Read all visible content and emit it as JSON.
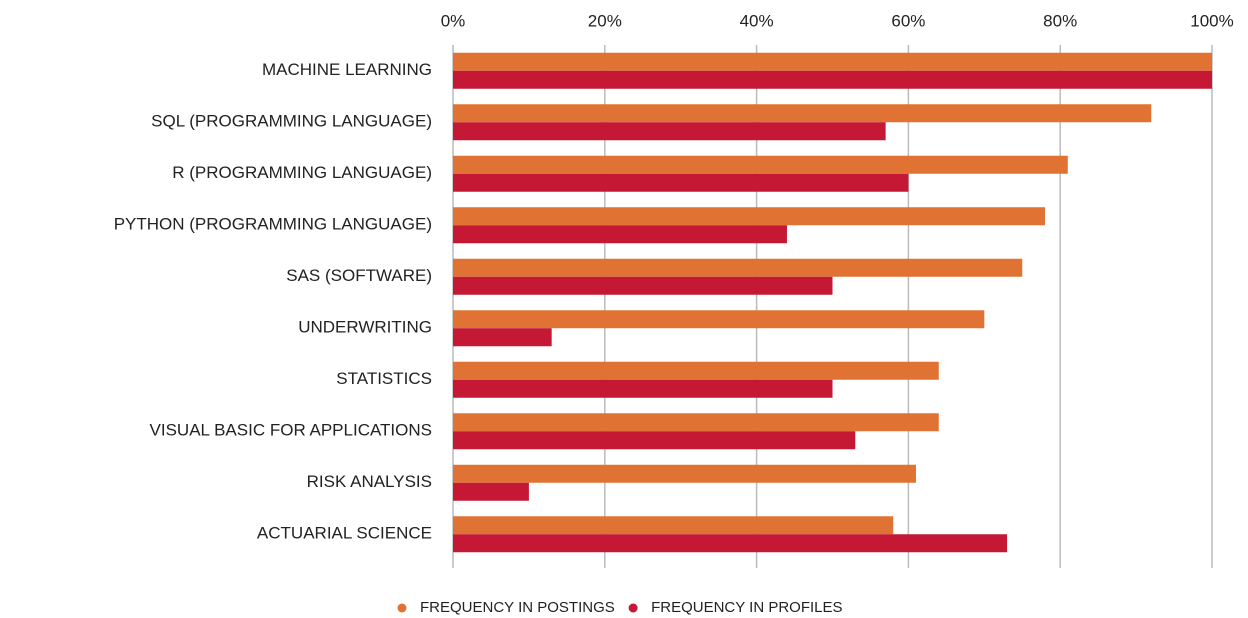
{
  "chart_data": {
    "type": "hbar",
    "categories": [
      "MACHINE LEARNING",
      "SQL (PROGRAMMING LANGUAGE)",
      "R (PROGRAMMING LANGUAGE)",
      "PYTHON (PROGRAMMING LANGUAGE)",
      "SAS (SOFTWARE)",
      "UNDERWRITING",
      "STATISTICS",
      "VISUAL BASIC FOR APPLICATIONS",
      "RISK ANALYSIS",
      "ACTUARIAL SCIENCE"
    ],
    "series": [
      {
        "name": "FREQUENCY IN POSTINGS",
        "color": "#e07333",
        "values": [
          100,
          92,
          81,
          78,
          75,
          70,
          64,
          64,
          61,
          58
        ]
      },
      {
        "name": "FREQUENCY IN PROFILES",
        "color": "#c41834",
        "values": [
          100,
          57,
          60,
          44,
          50,
          13,
          50,
          53,
          10,
          73
        ]
      }
    ],
    "xlim": [
      0,
      100
    ],
    "xticks": [
      {
        "value": 0,
        "label": "0%"
      },
      {
        "value": 20,
        "label": "20%"
      },
      {
        "value": 40,
        "label": "40%"
      },
      {
        "value": 60,
        "label": "60%"
      },
      {
        "value": 80,
        "label": "80%"
      },
      {
        "value": 100,
        "label": "100%"
      }
    ],
    "grid": true,
    "legend": "bottom"
  }
}
